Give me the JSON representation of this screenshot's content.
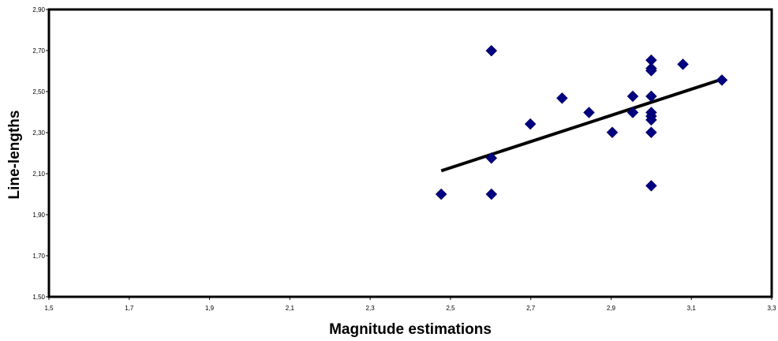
{
  "chart_data": {
    "type": "scatter",
    "title": "",
    "xlabel": "Magnitude estimations",
    "ylabel": "Line-lengths",
    "xlim": [
      1.5,
      3.3
    ],
    "ylim": [
      1.5,
      2.9
    ],
    "x_ticks": [
      1.5,
      1.7,
      1.9,
      2.1,
      2.3,
      2.5,
      2.7,
      2.9,
      3.1,
      3.3
    ],
    "x_tick_labels": [
      "1,5",
      "1,7",
      "1,9",
      "2,1",
      "2,3",
      "2,5",
      "2,7",
      "2,9",
      "3,1",
      "3,3"
    ],
    "y_ticks": [
      1.5,
      1.7,
      1.9,
      2.1,
      2.3,
      2.5,
      2.7,
      2.9
    ],
    "y_tick_labels": [
      "1,50",
      "1,70",
      "1,90",
      "2,10",
      "2,30",
      "2,50",
      "2,70",
      "2,90"
    ],
    "grid": false,
    "legend": false,
    "marker_color": "#000080",
    "trendline_color": "#000000",
    "series": [
      {
        "points": [
          {
            "x": 2.477,
            "y": 2.0
          },
          {
            "x": 2.602,
            "y": 2.699
          },
          {
            "x": 2.602,
            "y": 2.176
          },
          {
            "x": 2.602,
            "y": 2.0
          },
          {
            "x": 2.699,
            "y": 2.342
          },
          {
            "x": 2.778,
            "y": 2.468
          },
          {
            "x": 2.845,
            "y": 2.398
          },
          {
            "x": 2.903,
            "y": 2.301
          },
          {
            "x": 2.954,
            "y": 2.477
          },
          {
            "x": 2.954,
            "y": 2.398
          },
          {
            "x": 3.0,
            "y": 2.653
          },
          {
            "x": 3.0,
            "y": 2.613
          },
          {
            "x": 3.0,
            "y": 2.602
          },
          {
            "x": 3.0,
            "y": 2.477
          },
          {
            "x": 3.0,
            "y": 2.398
          },
          {
            "x": 3.0,
            "y": 2.38
          },
          {
            "x": 3.0,
            "y": 2.362
          },
          {
            "x": 3.0,
            "y": 2.301
          },
          {
            "x": 3.0,
            "y": 2.041
          },
          {
            "x": 3.079,
            "y": 2.633
          },
          {
            "x": 3.176,
            "y": 2.556
          }
        ]
      }
    ],
    "trendline": [
      {
        "x": 2.477,
        "y": 2.114
      },
      {
        "x": 3.176,
        "y": 2.56
      }
    ]
  }
}
